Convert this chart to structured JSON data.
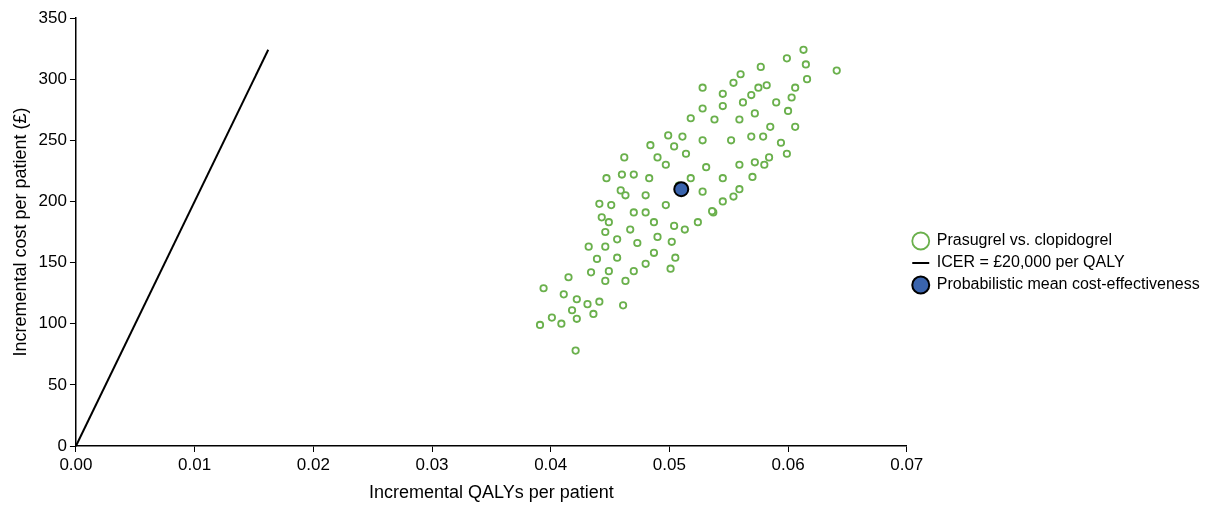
{
  "chart_data": {
    "type": "scatter",
    "xlabel": "Incremental QALYs per patient",
    "ylabel": "Incremental cost per patient (£)",
    "xlim": [
      0,
      0.07
    ],
    "xticks": [
      {
        "value": 0,
        "label": "0.00"
      },
      {
        "value": 0.01,
        "label": "0.01"
      },
      {
        "value": 0.02,
        "label": "0.02"
      },
      {
        "value": 0.03,
        "label": "0.03"
      },
      {
        "value": 0.04,
        "label": "0.04"
      },
      {
        "value": 0.05,
        "label": "0.05"
      },
      {
        "value": 0.06,
        "label": "0.06"
      },
      {
        "value": 0.07,
        "label": "0.07"
      }
    ],
    "ylim": [
      0,
      350
    ],
    "yticks": [
      0,
      50,
      100,
      150,
      200,
      250,
      300,
      350
    ],
    "grid": false,
    "legend": "right",
    "line_style": "solid",
    "series": [
      {
        "name": "Prasugrel vs. clopidogrel",
        "marker": "circle",
        "color": "#6ab04c",
        "x": [
          0.0613,
          0.0641,
          0.0599,
          0.0615,
          0.0577,
          0.056,
          0.0616,
          0.0528,
          0.0554,
          0.0606,
          0.0569,
          0.06,
          0.0606,
          0.0599,
          0.058,
          0.057,
          0.0559,
          0.0545,
          0.0537,
          0.0518,
          0.0545,
          0.0499,
          0.0484,
          0.0462,
          0.0447,
          0.046,
          0.0459,
          0.0441,
          0.0451,
          0.0443,
          0.0446,
          0.0432,
          0.0439,
          0.0434,
          0.0415,
          0.0394,
          0.0411,
          0.0422,
          0.0431,
          0.0441,
          0.0461,
          0.0436,
          0.0418,
          0.0401,
          0.0391,
          0.0409,
          0.0421,
          0.0422,
          0.0501,
          0.0505,
          0.0502,
          0.0513,
          0.0524,
          0.0536,
          0.0554,
          0.0572,
          0.0584,
          0.0594,
          0.0585,
          0.059,
          0.0575,
          0.0514,
          0.0528,
          0.0538,
          0.0559,
          0.0572,
          0.0552,
          0.0531,
          0.0518,
          0.0497,
          0.0483,
          0.048,
          0.0497,
          0.047,
          0.0487,
          0.0467,
          0.0456,
          0.0473,
          0.0487,
          0.0456,
          0.0449,
          0.047,
          0.048,
          0.0463,
          0.0446,
          0.0508,
          0.0528,
          0.0545,
          0.0559,
          0.0569,
          0.0579,
          0.0562,
          0.0582,
          0.0603,
          0.0545,
          0.0528,
          0.0511,
          0.0504,
          0.049,
          0.047,
          0.0463,
          0.0449,
          0.0446,
          0.049,
          0.0504,
          0.048
        ],
        "values": [
          324,
          307,
          317,
          312,
          310,
          304,
          300,
          293,
          297,
          293,
          287,
          274,
          261,
          239,
          230,
          220,
          210,
          200,
          191,
          268,
          288,
          254,
          246,
          236,
          219,
          222,
          209,
          198,
          197,
          187,
          175,
          163,
          153,
          142,
          138,
          129,
          124,
          120,
          116,
          118,
          115,
          108,
          111,
          105,
          99,
          100,
          78,
          104,
          145,
          154,
          167,
          177,
          183,
          192,
          204,
          232,
          236,
          248,
          261,
          281,
          293,
          239,
          250,
          267,
          267,
          272,
          250,
          228,
          219,
          230,
          219,
          205,
          197,
          191,
          183,
          177,
          169,
          166,
          158,
          154,
          143,
          143,
          149,
          135,
          135,
          213,
          208,
          219,
          230,
          253,
          253,
          281,
          295,
          285,
          278,
          276,
          253,
          245,
          236,
          222,
          205,
          183,
          163,
          171,
          180,
          191
        ]
      },
      {
        "name": "ICER = £20,000 per QALY",
        "type": "line",
        "marker": "none",
        "color": "#000000",
        "x": [
          0,
          0.0162
        ],
        "values": [
          0,
          324
        ]
      },
      {
        "name": "Probabilistic mean cost-effectiveness",
        "marker": "circle",
        "color": "#3a64ad",
        "x": [
          0.051
        ],
        "values": [
          210
        ]
      }
    ]
  }
}
